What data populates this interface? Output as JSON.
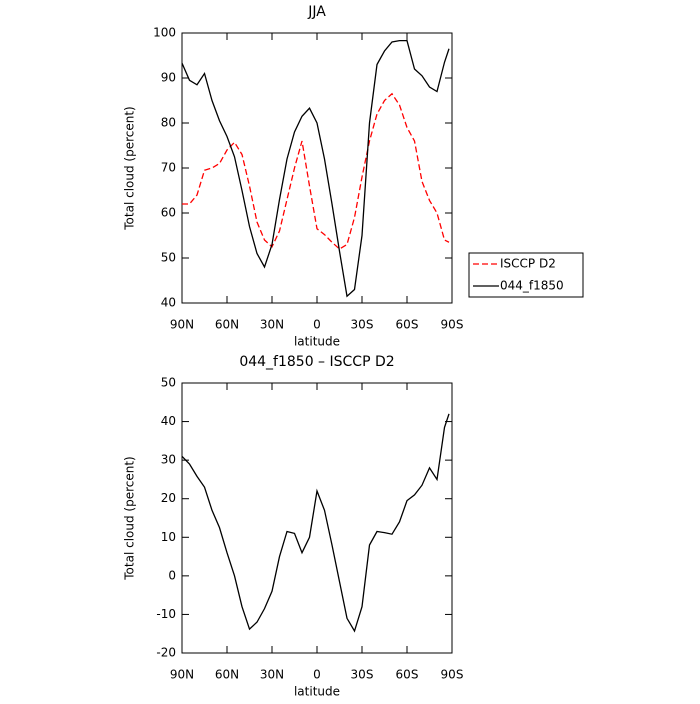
{
  "chart_data": [
    {
      "type": "line",
      "title": "JJA",
      "x_label": "latitude",
      "y_label": "Total cloud (percent)",
      "x": [
        90,
        85,
        80,
        75,
        70,
        65,
        60,
        55,
        50,
        45,
        40,
        35,
        30,
        25,
        20,
        15,
        10,
        5,
        0,
        -5,
        -10,
        -15,
        -20,
        -25,
        -30,
        -35,
        -40,
        -45,
        -50,
        -55,
        -60,
        -65,
        -70,
        -75,
        -80,
        -85,
        -88
      ],
      "xlim": [
        90,
        -90
      ],
      "xticks": [
        {
          "value": 90,
          "label": "90N"
        },
        {
          "value": 60,
          "label": "60N"
        },
        {
          "value": 30,
          "label": "30N"
        },
        0,
        {
          "value": -30,
          "label": "30S"
        },
        {
          "value": -60,
          "label": "60S"
        },
        {
          "value": -90,
          "label": "90S"
        }
      ],
      "ylim": [
        40,
        100
      ],
      "yticks": [
        40,
        50,
        60,
        70,
        80,
        90,
        100
      ],
      "legend": "right",
      "series": [
        {
          "name": "ISCCP D2",
          "color": "#ff0000",
          "style": "dashed",
          "values": [
            62,
            62,
            64,
            69.5,
            70,
            71,
            74,
            75.7,
            73,
            66,
            58,
            54,
            52.5,
            56,
            63,
            70,
            76,
            66,
            56.5,
            55.2,
            53.5,
            52,
            53,
            59,
            68,
            76,
            82,
            85,
            86.5,
            84,
            79,
            76,
            67,
            62.8,
            60,
            54,
            53.5
          ]
        },
        {
          "name": "044_f1850",
          "color": "#000000",
          "style": "solid",
          "values": [
            93.3,
            89.5,
            88.5,
            91,
            85,
            80.5,
            77,
            72.5,
            65,
            57,
            51,
            48,
            53,
            63,
            72,
            78,
            81.5,
            83.3,
            80,
            72,
            62,
            51.5,
            41.5,
            43,
            55,
            80,
            93,
            96,
            98,
            98.3,
            98.3,
            92,
            90.5,
            88,
            87,
            93.5,
            96.5
          ]
        }
      ]
    },
    {
      "type": "line",
      "title": "044_f1850 – ISCCP D2",
      "x_label": "latitude",
      "y_label": "Total cloud (percent)",
      "x": [
        90,
        85,
        80,
        75,
        70,
        65,
        60,
        55,
        50,
        45,
        40,
        35,
        30,
        25,
        20,
        15,
        10,
        5,
        0,
        -5,
        -10,
        -15,
        -20,
        -25,
        -30,
        -35,
        -40,
        -45,
        -50,
        -55,
        -60,
        -65,
        -70,
        -75,
        -80,
        -85,
        -88
      ],
      "xlim": [
        90,
        -90
      ],
      "xticks": [
        {
          "value": 90,
          "label": "90N"
        },
        {
          "value": 60,
          "label": "60N"
        },
        {
          "value": 30,
          "label": "30N"
        },
        0,
        {
          "value": -30,
          "label": "30S"
        },
        {
          "value": -60,
          "label": "60S"
        },
        {
          "value": -90,
          "label": "90S"
        }
      ],
      "ylim": [
        -20,
        50
      ],
      "yticks": [
        -20,
        -10,
        0,
        10,
        20,
        30,
        40,
        50
      ],
      "series": [
        {
          "color": "#000000",
          "style": "solid",
          "values": [
            31,
            29,
            25.8,
            23,
            17,
            12.5,
            6,
            0,
            -8,
            -13.8,
            -12,
            -8.5,
            -4,
            5,
            11.5,
            11,
            6,
            10,
            22,
            17,
            8,
            -1.5,
            -11,
            -14.3,
            -8,
            8,
            11.5,
            11.2,
            10.8,
            14,
            19.5,
            21,
            23.5,
            28,
            25,
            38.5,
            42
          ]
        }
      ]
    }
  ]
}
